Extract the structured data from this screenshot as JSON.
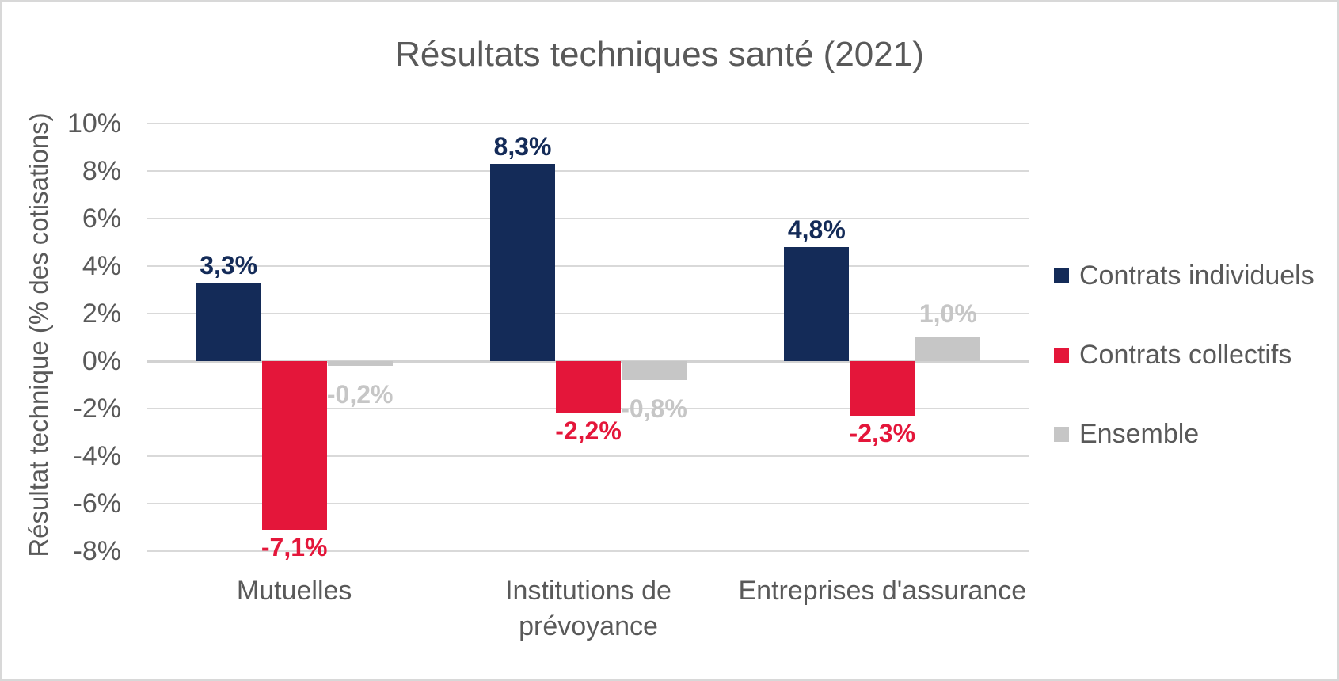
{
  "chart_data": {
    "type": "bar",
    "title": "Résultats techniques santé (2021)",
    "ylabel": "Résultat technique (% des cotisations)",
    "xlabel": "",
    "categories": [
      "Mutuelles",
      "Institutions de prévoyance",
      "Entreprises d'assurance"
    ],
    "series": [
      {
        "name": "Contrats individuels",
        "color": "#142b58",
        "values": [
          3.3,
          8.3,
          4.8
        ],
        "labels": [
          "3,3%",
          "8,3%",
          "4,8%"
        ]
      },
      {
        "name": "Contrats collectifs",
        "color": "#e4163a",
        "values": [
          -7.1,
          -2.2,
          -2.3
        ],
        "labels": [
          "-7,1%",
          "-2,2%",
          "-2,3%"
        ]
      },
      {
        "name": "Ensemble",
        "color": "#c6c6c6",
        "values": [
          -0.2,
          -0.8,
          1.0
        ],
        "labels": [
          "-0,2%",
          "-0,8%",
          "1,0%"
        ]
      }
    ],
    "y_ticks": [
      {
        "value": 10,
        "label": "10%"
      },
      {
        "value": 8,
        "label": "8%"
      },
      {
        "value": 6,
        "label": "6%"
      },
      {
        "value": 4,
        "label": "4%"
      },
      {
        "value": 2,
        "label": "2%"
      },
      {
        "value": 0,
        "label": "0%"
      },
      {
        "value": -2,
        "label": "-2%"
      },
      {
        "value": -4,
        "label": "-4%"
      },
      {
        "value": -6,
        "label": "-6%"
      },
      {
        "value": -8,
        "label": "-8%"
      }
    ],
    "ylim": [
      -8,
      10
    ],
    "grid": true,
    "legend_position": "right"
  },
  "colors": {
    "text": "#595959",
    "gridline": "#d9d9d9",
    "frame_border": "#d8d8d8",
    "background": "#ffffff"
  }
}
